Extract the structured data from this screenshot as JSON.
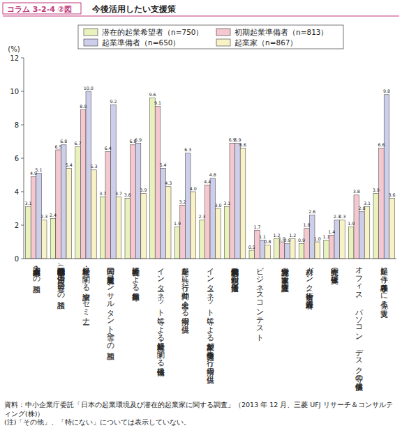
{
  "chart_data": {
    "type": "bar",
    "title": "今後活用したい支援策",
    "subtitle": "コラム 3-2-4 ②図",
    "ylabel": "(%)",
    "categories": [
      "商工会・商工会議所への相談",
      "公的機関（中小企業基盤整備機構、自治体の窓口等）への相談",
      "起業・経営に関する講座やセミナー",
      "民間の起業支援者（コンサルタント等）への相談",
      "先輩経営者による起業指導",
      "インターネット等による起業・経営に関する情報提供",
      "起業を共に行う仲間と出会える場所の提供",
      "インターネット等による起業家が情報交換を行う場所の提供",
      "低金利融資制度や税制面の優遇措置",
      "ビジネスコンテスト",
      "保育施設や家事支援、介護支援等",
      "人材バンク（技術者や経理人材等）",
      "販売先の確保支援",
      "オフィス、パソコン、デスク等の無償提供",
      "起業に伴う各種手続きに係る支援"
    ],
    "series": [
      {
        "name": "潜在的起業希望者（n=750）",
        "color": "#e9f1bd",
        "values": [
          3.1,
          2.4,
          6.7,
          3.7,
          3.6,
          9.6,
          1.9,
          2.3,
          3.1,
          0.5,
          1.2,
          0.9,
          1.1,
          1.9,
          3.9
        ],
        "value_labels": [
          "3.1",
          "2.4",
          "6.7",
          "3.7",
          "3.6",
          "9.6",
          "1.9",
          "2.3",
          "3.1",
          "0.5",
          "1.2",
          "0.9",
          "1.1",
          "1.9",
          "3.9"
        ]
      },
      {
        "name": "初期起業準備者（n=813）",
        "color": "#f5c8d0",
        "values": [
          4.9,
          6.5,
          8.9,
          6.4,
          6.8,
          9.1,
          3.2,
          4.4,
          6.9,
          1.7,
          1.0,
          1.8,
          1.4,
          3.8,
          6.6
        ],
        "value_labels": [
          "4.9",
          "6.5",
          "8.9",
          "6.4",
          "6.8",
          "9.1",
          "3.2",
          "4.4",
          "6.9",
          "1.7",
          "1.0",
          "1.8",
          "1.4",
          "3.8",
          "6.6"
        ]
      },
      {
        "name": "起業準備者（n=650）",
        "color": "#ccceea",
        "values": [
          5.1,
          6.8,
          10.0,
          9.2,
          6.9,
          5.4,
          6.3,
          4.8,
          6.9,
          1.1,
          0.9,
          2.6,
          2.3,
          2.8,
          9.8
        ],
        "value_labels": [
          "5.1",
          "6.8",
          "10.0",
          "9.2",
          "6.9",
          "5.4",
          "6.3",
          "4.8",
          "6.9",
          "1.1",
          "0.9",
          "2.6",
          "2.3",
          "2.8",
          "9.8"
        ]
      },
      {
        "name": "起業家（n=867）",
        "color": "#f8f2c6",
        "values": [
          2.3,
          5.4,
          5.3,
          3.7,
          3.9,
          4.3,
          4.0,
          3.0,
          6.6,
          0.8,
          1.2,
          1.0,
          2.3,
          3.1,
          3.6
        ],
        "value_labels": [
          "2.3",
          "5.4",
          "5.3",
          "3.7",
          "3.9",
          "4.3",
          "4.0",
          "3.0",
          "6.6",
          "0.8",
          "1.2",
          "1.0",
          "2.3",
          "3.1",
          "3.6"
        ]
      }
    ],
    "ylim": [
      0,
      12
    ],
    "yticks": [
      0,
      2,
      4,
      6,
      8,
      10,
      12
    ],
    "grid": false,
    "legend": "top",
    "data_labels": true,
    "annotations": [
      "資料：中小企業庁委託「日本の起業環境及び潜在的起業家に関する調査」（2013 年 12 月、三菱 UFJ リサーチ＆コンサルティング(株)）",
      "(注)「その他」、「特にない」については表示していない。"
    ]
  }
}
